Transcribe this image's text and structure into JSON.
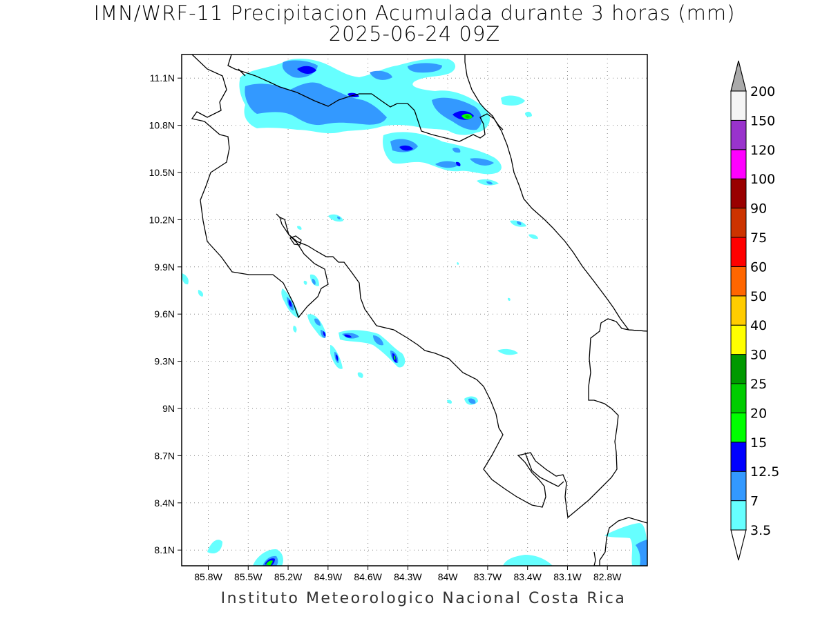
{
  "title": "IMN/WRF-11 Precipitacion Acumulada durante 3 horas (mm)",
  "subtitle": "2025-06-24 09Z",
  "footer": "Instituto Meteorologico Nacional Costa Rica",
  "map": {
    "lon_range": [
      -86.0,
      -82.5
    ],
    "lat_range": [
      8.0,
      11.25
    ],
    "lon_ticks": [
      "85.8W",
      "85.5W",
      "85.2W",
      "84.9W",
      "84.6W",
      "84.3W",
      "84W",
      "83.7W",
      "83.4W",
      "83.1W",
      "82.8W"
    ],
    "lat_ticks": [
      "11.1N",
      "10.8N",
      "10.5N",
      "10.2N",
      "9.9N",
      "9.6N",
      "9.3N",
      "9N",
      "8.7N",
      "8.4N",
      "8.1N"
    ],
    "grid": "dotted"
  },
  "colorbar": {
    "levels": [
      "3.5",
      "7",
      "12.5",
      "15",
      "20",
      "25",
      "30",
      "40",
      "50",
      "60",
      "75",
      "90",
      "100",
      "120",
      "150",
      "200"
    ],
    "colors": [
      "#66ffff",
      "#3399ff",
      "#0000ff",
      "#00ff00",
      "#00cc00",
      "#009900",
      "#ffff00",
      "#ffcc00",
      "#ff6600",
      "#ff0000",
      "#cc3300",
      "#990000",
      "#ff00ff",
      "#9933cc",
      "#f5f5f5"
    ],
    "top_arrow_color": "#aaaaaa",
    "bottom_arrow_color": "#ffffff"
  }
}
